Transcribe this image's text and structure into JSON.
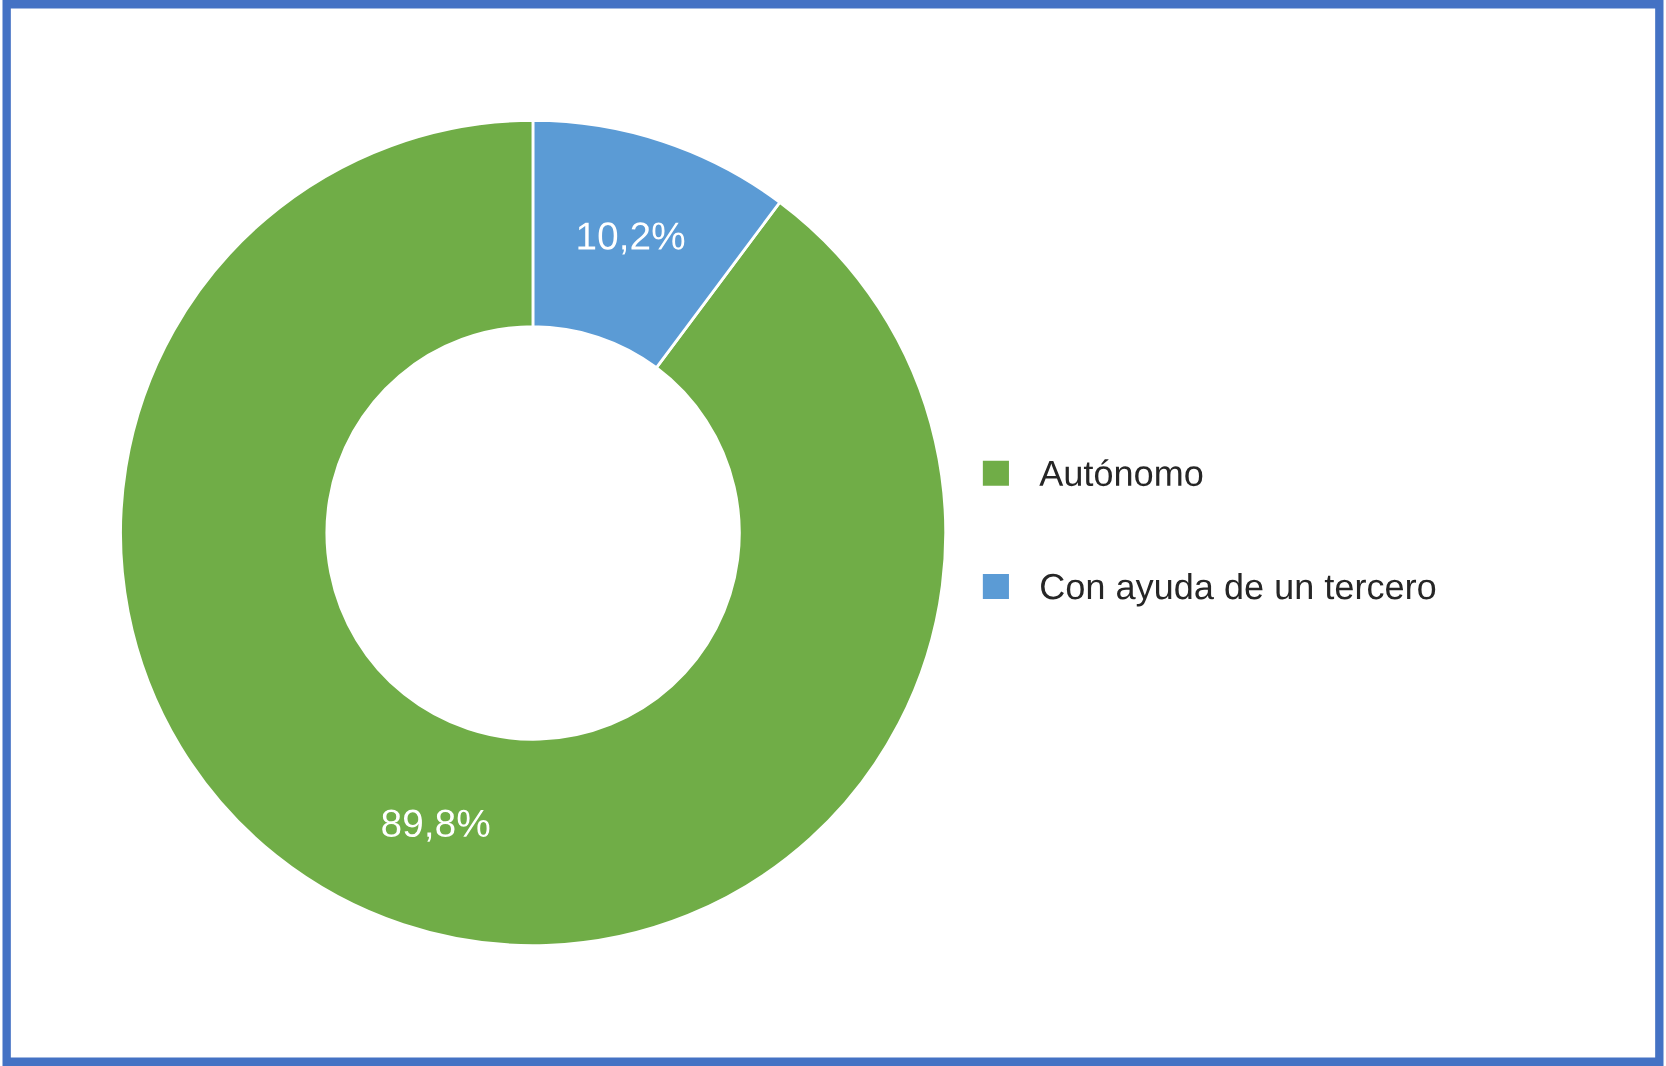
{
  "chart_data": {
    "type": "donut",
    "categories": [
      "Autónomo",
      "Con ayuda de un tercero"
    ],
    "values": [
      89.8,
      10.2
    ],
    "colors": [
      "#70ad47",
      "#5b9bd5"
    ],
    "value_labels": [
      "89,8%",
      "10,2%"
    ],
    "legend": "right"
  }
}
